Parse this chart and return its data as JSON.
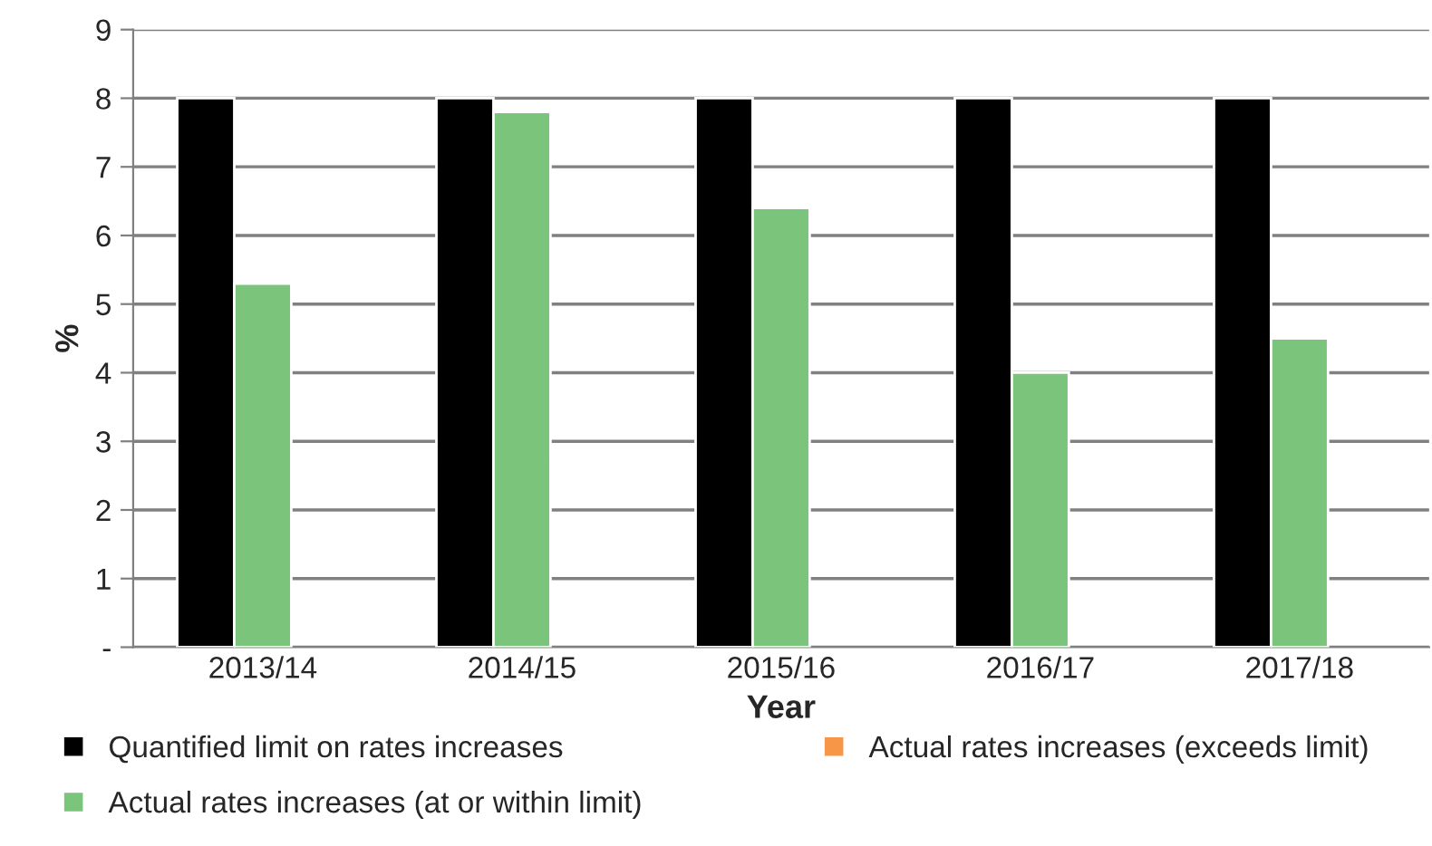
{
  "chart_data": {
    "type": "bar",
    "ylabel": "%",
    "xlabel": "Year",
    "categories": [
      "2013/14",
      "2014/15",
      "2015/16",
      "2016/17",
      "2017/18"
    ],
    "series": [
      {
        "name": "Quantified limit on rates increases",
        "color": "#000000",
        "values": [
          8,
          8,
          8,
          8,
          8
        ]
      },
      {
        "name": "Actual rates increases (at or within limit)",
        "color": "#7bc47b",
        "values": [
          5.3,
          7.8,
          6.4,
          4.0,
          4.5
        ]
      },
      {
        "name": "Actual rates increases (exceeds limit)",
        "color": "#f79646",
        "values": [
          null,
          null,
          null,
          null,
          null
        ]
      }
    ],
    "ylim": [
      0,
      9
    ],
    "yticks": [
      {
        "value": 0,
        "label": "-"
      },
      1,
      2,
      3,
      4,
      5,
      6,
      7,
      8,
      9
    ],
    "grid": "y",
    "legend": "bottom"
  }
}
